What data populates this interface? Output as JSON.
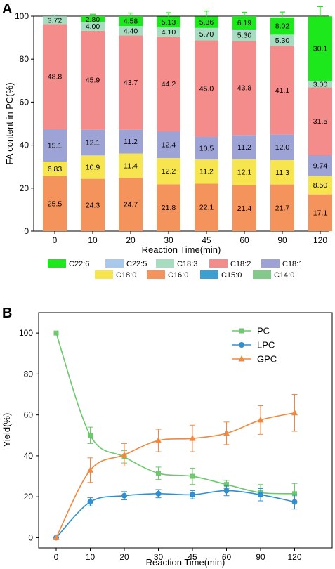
{
  "chart_data": [
    {
      "panel": "A",
      "type": "bar",
      "stacked": true,
      "xlabel": "Reaction Time(min)",
      "ylabel": "FA content in PC(%)",
      "ylim": [
        0,
        100
      ],
      "yticks": [
        "0",
        "20",
        "40",
        "60",
        "80",
        "100"
      ],
      "categories": [
        "0",
        "10",
        "20",
        "30",
        "45",
        "60",
        "90",
        "120"
      ],
      "series": [
        {
          "name": "C16:0",
          "color": "#f5935c",
          "values": [
            25.5,
            24.3,
            24.7,
            21.8,
            22.1,
            21.4,
            21.7,
            17.1
          ],
          "labels": [
            "25.5",
            "24.3",
            "24.7",
            "21.8",
            "22.1",
            "21.4",
            "21.7",
            "17.1"
          ],
          "err": [
            1.5,
            1.8,
            1.5,
            1.2,
            1.5,
            1.4,
            1.0,
            0.8
          ]
        },
        {
          "name": "C18:0",
          "color": "#f7e54f",
          "values": [
            6.83,
            10.9,
            11.4,
            12.2,
            11.2,
            12.1,
            11.3,
            8.5
          ],
          "labels": [
            "6.83",
            "10.9",
            "11.4",
            "12.2",
            "11.2",
            "12.1",
            "11.3",
            "8.50"
          ],
          "err": [
            0.8,
            0.8,
            0.8,
            0.6,
            0.8,
            0.7,
            0.6,
            0.5
          ]
        },
        {
          "name": "C18:1",
          "color": "#9ea3d6",
          "values": [
            15.1,
            12.1,
            11.2,
            12.4,
            10.5,
            11.2,
            12.0,
            9.74
          ],
          "labels": [
            "15.1",
            "12.1",
            "11.2",
            "12.4",
            "10.5",
            "11.2",
            "12.0",
            "9.74"
          ],
          "err": [
            1.0,
            1.5,
            1.3,
            1.0,
            1.0,
            1.0,
            1.0,
            0.8
          ]
        },
        {
          "name": "C18:2",
          "color": "#f58c8c",
          "values": [
            48.8,
            45.9,
            43.7,
            44.2,
            45.0,
            43.8,
            41.1,
            31.5
          ],
          "labels": [
            "48.8",
            "45.9",
            "43.7",
            "44.2",
            "45.0",
            "43.8",
            "41.1",
            "31.5"
          ],
          "err": [
            1.0,
            1.0,
            1.3,
            1.3,
            1.3,
            1.3,
            1.3,
            1.3
          ]
        },
        {
          "name": "C18:3",
          "color": "#a6dcc0",
          "values": [
            3.72,
            4.0,
            4.4,
            4.1,
            5.7,
            5.3,
            5.3,
            3.0
          ],
          "labels": [
            "3.72",
            "4.00",
            "4.40",
            "4.10",
            "5.70",
            "5.30",
            "5.30",
            "3.00"
          ],
          "err": [
            0.6,
            0.6,
            0.6,
            0.6,
            0.6,
            0.6,
            0.6,
            0.6
          ]
        },
        {
          "name": "C22:6",
          "color": "#1ce81c",
          "values": [
            0,
            2.8,
            4.58,
            5.13,
            5.36,
            6.19,
            8.02,
            30.1
          ],
          "labels": [
            "",
            "2.80",
            "4.58",
            "5.13",
            "5.36",
            "6.19",
            "8.02",
            "30.1"
          ],
          "err": [
            1.2,
            0.9,
            1.5,
            1.8,
            2.5,
            1.8,
            2.5,
            4.5
          ]
        }
      ],
      "legend": [
        {
          "name": "C22:6",
          "color": "#1ce81c"
        },
        {
          "name": "C22:5",
          "color": "#a9c9ec"
        },
        {
          "name": "C18:3",
          "color": "#a6dcc0"
        },
        {
          "name": "C18:2",
          "color": "#f58c8c"
        },
        {
          "name": "C18:1",
          "color": "#9ea3d6"
        },
        {
          "name": "C18:0",
          "color": "#f7e54f"
        },
        {
          "name": "C16:0",
          "color": "#f5935c"
        },
        {
          "name": "C15:0",
          "color": "#3b9fd0"
        },
        {
          "name": "C14:0",
          "color": "#82c98a"
        }
      ],
      "legend_position": "bottom"
    },
    {
      "panel": "B",
      "type": "line",
      "xlabel": "Reaction Time(min)",
      "ylabel": "Yield(%)",
      "ylim": [
        -5,
        110
      ],
      "yticks": [
        "0",
        "20",
        "40",
        "60",
        "80",
        "100"
      ],
      "categories": [
        "0",
        "10",
        "20",
        "30",
        "45",
        "60",
        "90",
        "120"
      ],
      "series": [
        {
          "name": "PC",
          "color": "#6cc96c",
          "marker": "square",
          "values": [
            100,
            50,
            39.5,
            31.5,
            30,
            26,
            22,
            21.5
          ],
          "err": [
            0,
            4,
            3,
            3,
            4,
            2,
            4,
            5
          ]
        },
        {
          "name": "LPC",
          "color": "#2f8fd0",
          "marker": "circle",
          "values": [
            0,
            17.5,
            20.5,
            21.5,
            21,
            23,
            21,
            17.5
          ],
          "err": [
            0,
            2,
            2,
            2,
            2,
            2.5,
            3,
            3.5
          ]
        },
        {
          "name": "GPC",
          "color": "#f0893f",
          "marker": "triangle",
          "values": [
            0,
            33,
            40.5,
            47.5,
            48.5,
            51,
            57.5,
            61
          ],
          "err": [
            0,
            6,
            5.5,
            5.5,
            6.5,
            5.5,
            7,
            9
          ]
        }
      ],
      "legend_position": "top-right"
    }
  ]
}
